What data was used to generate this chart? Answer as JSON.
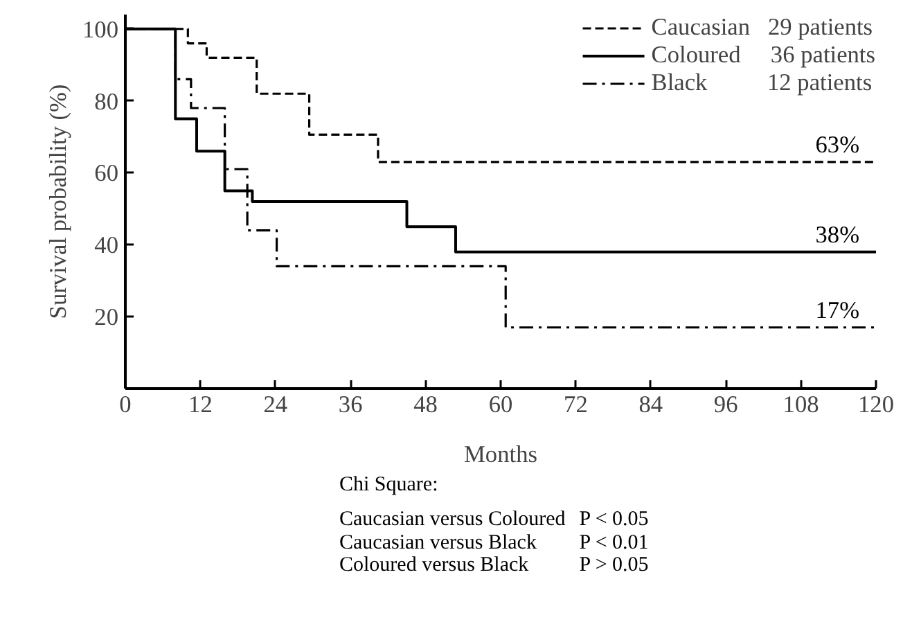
{
  "chart_data": {
    "type": "step",
    "xlabel": "Months",
    "ylabel": "Survival probability (%)",
    "xlim": [
      0,
      120
    ],
    "ylim": [
      0,
      104
    ],
    "xticks": [
      0,
      12,
      24,
      36,
      48,
      60,
      72,
      84,
      96,
      108,
      120
    ],
    "yticks": [
      20,
      40,
      60,
      80,
      100
    ],
    "grid": false,
    "legend": "top right",
    "marker": "none",
    "series": [
      {
        "name": "Caucasian   29 patients",
        "color": "#000000",
        "line_style": "dashed",
        "x": [
          0,
          10,
          13,
          21,
          29.4,
          40.4,
          120
        ],
        "values": [
          100,
          96,
          92,
          82,
          70.6,
          63,
          63
        ],
        "value_labels": [
          null,
          null,
          null,
          null,
          null,
          null,
          "63%"
        ]
      },
      {
        "name": "Coloured     36 patients",
        "color": "#000000",
        "line_style": "solid",
        "x": [
          0,
          8,
          11.4,
          15.9,
          20.3,
          45,
          52.8,
          120
        ],
        "values": [
          100,
          75,
          66,
          55,
          52,
          45,
          38,
          38
        ],
        "value_labels": [
          null,
          null,
          null,
          null,
          null,
          null,
          null,
          "38%"
        ]
      },
      {
        "name": "Black          12 patients",
        "color": "#000000",
        "line_style": "dashdot",
        "x": [
          0,
          8,
          10.5,
          15.9,
          19.5,
          24.2,
          60.8,
          120
        ],
        "values": [
          100,
          86,
          78,
          61,
          44,
          34,
          17,
          17
        ],
        "value_labels": [
          null,
          null,
          null,
          null,
          null,
          null,
          null,
          "17%"
        ]
      }
    ],
    "annotations": [
      "Chi Square:",
      "Caucasian versus Coloured",
      "P < 0.05",
      "Caucasian versus Black",
      "P < 0.01",
      "Coloured versus Black",
      "P > 0.05"
    ]
  }
}
